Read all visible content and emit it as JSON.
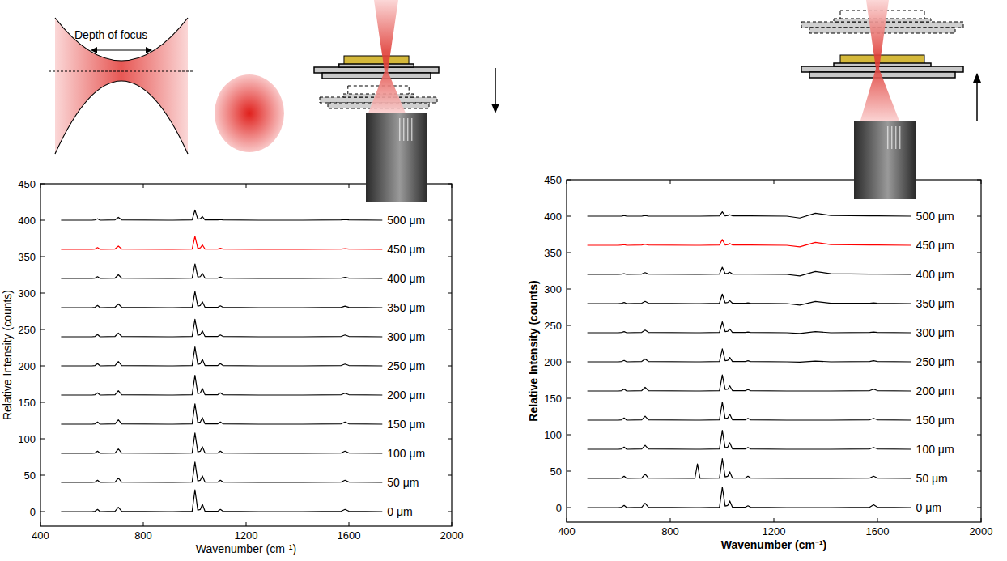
{
  "chart_data": [
    {
      "type": "line",
      "annotations": [
        "Depth of focus"
      ],
      "x_label": "Wavenumber (cm⁻¹)",
      "y_label": "Relative Intensity (counts)",
      "xlim": [
        400,
        2000
      ],
      "xticks": [
        400,
        800,
        1200,
        1600,
        2000
      ],
      "ylim": [
        -20,
        450
      ],
      "yticks": [
        0,
        50,
        100,
        150,
        200,
        250,
        300,
        350,
        400,
        450
      ],
      "x": [
        480,
        600,
        612,
        622,
        632,
        690,
        703,
        716,
        895,
        905,
        915,
        990,
        1001,
        1012,
        1022,
        1030,
        1040,
        1090,
        1100,
        1110,
        1250,
        1300,
        1360,
        1420,
        1570,
        1585,
        1600,
        1730
      ],
      "series": [
        {
          "name": "0 μm",
          "color": "#000000",
          "values": [
            0,
            0,
            0.5,
            3,
            0,
            0.5,
            6,
            0.5,
            0,
            0,
            0,
            0.5,
            30,
            2,
            3,
            10,
            0.5,
            0.5,
            3,
            0.5,
            0,
            0,
            0,
            0,
            0.5,
            3,
            0.5,
            0
          ]
        },
        {
          "name": "50 μm",
          "color": "#000000",
          "values": [
            40,
            40,
            40.5,
            43,
            40,
            40.5,
            46,
            40.5,
            40,
            40,
            40,
            40.5,
            68,
            42,
            43,
            49,
            40.5,
            40.5,
            43,
            40.5,
            40,
            40,
            40,
            40,
            40.5,
            43,
            40.5,
            40
          ]
        },
        {
          "name": "100 μm",
          "color": "#000000",
          "values": [
            80,
            80,
            80.5,
            83,
            80,
            80.5,
            86,
            80.5,
            80,
            80,
            80,
            80.5,
            108,
            82,
            83,
            89,
            80.5,
            80.5,
            83,
            80.5,
            80,
            80,
            80,
            80,
            80.5,
            83,
            80.5,
            80
          ]
        },
        {
          "name": "150 μm",
          "color": "#000000",
          "values": [
            120,
            120,
            120.5,
            123,
            120,
            120.5,
            126,
            120.5,
            120,
            120,
            120,
            120.5,
            148,
            122,
            123,
            129,
            120.5,
            120.5,
            123,
            120.5,
            120,
            120,
            120,
            120,
            120.5,
            123,
            120.5,
            120
          ]
        },
        {
          "name": "200 μm",
          "color": "#000000",
          "values": [
            160,
            160,
            160.5,
            163,
            160,
            160.5,
            166,
            160.5,
            160,
            160,
            160,
            160.5,
            187,
            162,
            163,
            169,
            160.5,
            160.5,
            163,
            160.5,
            160,
            160,
            160,
            160,
            160.5,
            162.5,
            160.5,
            160
          ]
        },
        {
          "name": "250 μm",
          "color": "#000000",
          "values": [
            200,
            200,
            200.5,
            203,
            200,
            200.5,
            206,
            200.5,
            200,
            200,
            200,
            200.5,
            226,
            202,
            203,
            209,
            200.5,
            200.5,
            203,
            200.5,
            200,
            200,
            200,
            200,
            200.5,
            202.5,
            200.5,
            200
          ]
        },
        {
          "name": "300 μm",
          "color": "#000000",
          "values": [
            240,
            240,
            240.5,
            243,
            240,
            240.5,
            245,
            240.5,
            240,
            240,
            240,
            240.5,
            264,
            242,
            243,
            248,
            240.5,
            240.5,
            242.5,
            240.5,
            240,
            240,
            240,
            240,
            240.5,
            242.5,
            240.5,
            240
          ]
        },
        {
          "name": "350 μm",
          "color": "#000000",
          "values": [
            280,
            280,
            280.5,
            283,
            280,
            280.5,
            285,
            280.5,
            280,
            280,
            280,
            280.5,
            302,
            282,
            283,
            288,
            280.5,
            280.5,
            282.5,
            280.5,
            280,
            280,
            280,
            280,
            280.5,
            282,
            280.5,
            280
          ]
        },
        {
          "name": "400 μm",
          "color": "#000000",
          "values": [
            320,
            320,
            320.5,
            322.5,
            320,
            320.5,
            325,
            320.5,
            320,
            320,
            320,
            320.5,
            340,
            322,
            322.5,
            327,
            320.5,
            320.5,
            322,
            320.5,
            320,
            320,
            320,
            320,
            320.5,
            321.5,
            320.5,
            320
          ]
        },
        {
          "name": "450 μm",
          "color": "#ff0000",
          "values": [
            360,
            360,
            360.5,
            362.5,
            360,
            360.5,
            364.5,
            360.5,
            360,
            360,
            360,
            360.5,
            378,
            361.5,
            362,
            366,
            360.5,
            360.5,
            361.5,
            360.5,
            360,
            360,
            360,
            360,
            360.5,
            361,
            360.5,
            360
          ]
        },
        {
          "name": "500 μm",
          "color": "#000000",
          "values": [
            400,
            400,
            400.5,
            402,
            400,
            400.5,
            404,
            400.5,
            400,
            400,
            400,
            400.5,
            414,
            401.5,
            402,
            405,
            400.5,
            400.5,
            401,
            400.5,
            400,
            400,
            400,
            400,
            400.5,
            401,
            400.5,
            400
          ]
        }
      ]
    },
    {
      "type": "line",
      "x_label": "Wavenumber (cm⁻¹)",
      "y_label": "Relative Intensity (counts)",
      "xlim": [
        400,
        2000
      ],
      "xticks": [
        400,
        800,
        1200,
        1600,
        2000
      ],
      "ylim": [
        -20,
        450
      ],
      "yticks": [
        0,
        50,
        100,
        150,
        200,
        250,
        300,
        350,
        400,
        450
      ],
      "x": [
        480,
        600,
        612,
        622,
        632,
        690,
        703,
        716,
        895,
        905,
        915,
        990,
        1001,
        1012,
        1022,
        1030,
        1040,
        1090,
        1100,
        1110,
        1250,
        1300,
        1360,
        1420,
        1570,
        1585,
        1600,
        1730
      ],
      "series": [
        {
          "name": "0 μm",
          "color": "#000000",
          "values": [
            0,
            0,
            0.5,
            3,
            0,
            0.5,
            6,
            0.5,
            0,
            0,
            0,
            0.5,
            28,
            2,
            3,
            9,
            0.5,
            0.5,
            2.5,
            0.5,
            0,
            0,
            0,
            0,
            0.5,
            4,
            0.5,
            0
          ]
        },
        {
          "name": "50 μm",
          "color": "#000000",
          "values": [
            40,
            40,
            40.5,
            43,
            40,
            40.5,
            46,
            40.5,
            40,
            60,
            40,
            40.5,
            67,
            42,
            43,
            49,
            40.5,
            40.5,
            43,
            40.5,
            40,
            40,
            40,
            40,
            40.5,
            43,
            40.5,
            40
          ]
        },
        {
          "name": "100 μm",
          "color": "#000000",
          "values": [
            80,
            80,
            80.5,
            83,
            80,
            80.5,
            85.5,
            80.5,
            80,
            80,
            80,
            80.5,
            106,
            82,
            83,
            89,
            80.5,
            80.5,
            82.5,
            80.5,
            80,
            80,
            80,
            80,
            80.5,
            82.5,
            80.5,
            80
          ]
        },
        {
          "name": "150 μm",
          "color": "#000000",
          "values": [
            120,
            120,
            120.5,
            123,
            120,
            120.5,
            125.5,
            120.5,
            120,
            120,
            120,
            120.5,
            145,
            122,
            123,
            128,
            120.5,
            120.5,
            122.5,
            120.5,
            120,
            120,
            120,
            120,
            120.5,
            122.5,
            120.5,
            120
          ]
        },
        {
          "name": "200 μm",
          "color": "#000000",
          "values": [
            160,
            160,
            160.5,
            162.5,
            160,
            160.5,
            165,
            160.5,
            160,
            160,
            160,
            160.5,
            182,
            162,
            162.5,
            167,
            160.5,
            160.5,
            162,
            160.5,
            160,
            160,
            160,
            160,
            160.5,
            162.5,
            160.5,
            160
          ]
        },
        {
          "name": "250 μm",
          "color": "#000000",
          "values": [
            200,
            200,
            200.5,
            202,
            200,
            200.5,
            204,
            200.5,
            200,
            200,
            200,
            200.5,
            218,
            201.5,
            202,
            206,
            200.5,
            200.5,
            201.5,
            200.5,
            200,
            199.5,
            201,
            200,
            200.5,
            201.5,
            200.5,
            200
          ]
        },
        {
          "name": "300 μm",
          "color": "#000000",
          "values": [
            240,
            240,
            240.5,
            241.5,
            240,
            240.5,
            243.5,
            240.5,
            240,
            240,
            240,
            240.5,
            255,
            241.5,
            242,
            245,
            240.5,
            240.5,
            241,
            240.5,
            240,
            239,
            241.5,
            240,
            240.5,
            241,
            240.5,
            240
          ]
        },
        {
          "name": "350 μm",
          "color": "#000000",
          "values": [
            280,
            280,
            280.5,
            281.5,
            280,
            280.5,
            283,
            280.5,
            280,
            280,
            280,
            280.5,
            293,
            281,
            281.5,
            284,
            280.5,
            280.5,
            281,
            280.5,
            280,
            278,
            283,
            280.5,
            280.5,
            281,
            280.5,
            280
          ]
        },
        {
          "name": "400 μm",
          "color": "#000000",
          "values": [
            320,
            320,
            320.5,
            321,
            320,
            320.5,
            322.5,
            320.5,
            320,
            320,
            320,
            320.5,
            330,
            321,
            321.5,
            323,
            320.5,
            320.5,
            320.5,
            320.5,
            320,
            318,
            324,
            321,
            320.5,
            320.5,
            320.5,
            320
          ]
        },
        {
          "name": "450 μm",
          "color": "#ff0000",
          "values": [
            360,
            360,
            360.5,
            361,
            360,
            360.5,
            361.5,
            360.5,
            360,
            360,
            360,
            360.5,
            368,
            360.5,
            361,
            362.5,
            360.5,
            360.5,
            360.5,
            360.5,
            360,
            358,
            364,
            361,
            360.5,
            360.5,
            360.5,
            360
          ]
        },
        {
          "name": "500 μm",
          "color": "#000000",
          "values": [
            400,
            400,
            400,
            401,
            400,
            400,
            401,
            400,
            400,
            400,
            400,
            400.5,
            406,
            400.5,
            401,
            402,
            400.5,
            400.5,
            400.5,
            400.5,
            400,
            397.5,
            404,
            401,
            400.5,
            400.5,
            400.5,
            400
          ]
        }
      ]
    }
  ]
}
